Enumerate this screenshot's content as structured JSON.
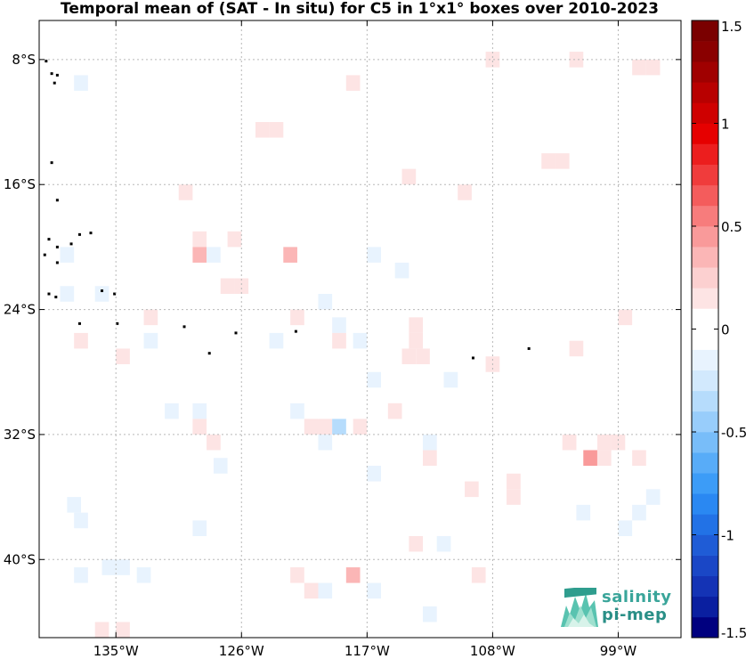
{
  "chart_data": {
    "type": "heatmap",
    "title": "Temporal mean of (SAT - In situ) for C5 in 1°x1° boxes over 2010-2023",
    "xlabel": "",
    "ylabel": "",
    "x_range": [
      -140.5,
      -94.5
    ],
    "y_range": [
      -45,
      -5.5
    ],
    "x_ticks": [
      {
        "value": -135,
        "label": "135°W"
      },
      {
        "value": -126,
        "label": "126°W"
      },
      {
        "value": -117,
        "label": "117°W"
      },
      {
        "value": -108,
        "label": "108°W"
      },
      {
        "value": -99,
        "label": "99°W"
      }
    ],
    "y_ticks": [
      {
        "value": -8,
        "label": "8°S"
      },
      {
        "value": -16,
        "label": "16°S"
      },
      {
        "value": -24,
        "label": "24°S"
      },
      {
        "value": -32,
        "label": "32°S"
      },
      {
        "value": -40,
        "label": "40°S"
      }
    ],
    "grid": true,
    "colorbar": {
      "min": -1.5,
      "max": 1.5,
      "ticks": [
        {
          "value": 1.5,
          "label": "1.5"
        },
        {
          "value": 1,
          "label": "1"
        },
        {
          "value": 0.5,
          "label": "0.5"
        },
        {
          "value": 0,
          "label": "0"
        },
        {
          "value": -0.5,
          "label": "-0.5"
        },
        {
          "value": -1,
          "label": "-1"
        },
        {
          "value": -1.5,
          "label": "-1.5"
        }
      ],
      "colors": [
        "#00007f",
        "#0a1fa0",
        "#1433b5",
        "#1a47c6",
        "#1f5cd6",
        "#2272e6",
        "#2a88f2",
        "#3c9cf7",
        "#58acf8",
        "#78bdf9",
        "#98cdfb",
        "#b6dcfc",
        "#d2e9fd",
        "#e8f3fe",
        "#ffffff",
        "#ffffff",
        "#fde4e4",
        "#fcd0d0",
        "#fbb6b6",
        "#f99a9a",
        "#f77c7c",
        "#f45c5c",
        "#f03c3c",
        "#ec1e1e",
        "#e60000",
        "#cf0000",
        "#b80000",
        "#a00000",
        "#8a0000",
        "#7a0000"
      ]
    },
    "cells": [
      {
        "lon": -138,
        "lat": -8,
        "value": 0
      },
      {
        "lon": -137.5,
        "lat": -9.5,
        "value": -0.1
      },
      {
        "lon": -138.5,
        "lat": -20.5,
        "value": -0.1
      },
      {
        "lon": -138.5,
        "lat": -23,
        "value": -0.1
      },
      {
        "lon": -137.5,
        "lat": -26,
        "value": 0.15
      },
      {
        "lon": -138,
        "lat": -36.5,
        "value": -0.1
      },
      {
        "lon": -137.5,
        "lat": -37.5,
        "value": -0.1
      },
      {
        "lon": -137.5,
        "lat": -41,
        "value": -0.1
      },
      {
        "lon": -136,
        "lat": -23,
        "value": -0.1
      },
      {
        "lon": -135.5,
        "lat": -40.5,
        "value": -0.1
      },
      {
        "lon": -134.5,
        "lat": -40.5,
        "value": -0.1
      },
      {
        "lon": -136,
        "lat": -44.5,
        "value": 0.15
      },
      {
        "lon": -134.5,
        "lat": -44.5,
        "value": 0.15
      },
      {
        "lon": -134.5,
        "lat": -27,
        "value": 0.15
      },
      {
        "lon": -133,
        "lat": -41,
        "value": -0.1
      },
      {
        "lon": -132.5,
        "lat": -24.5,
        "value": 0.15
      },
      {
        "lon": -132.5,
        "lat": -26,
        "value": -0.1
      },
      {
        "lon": -131,
        "lat": -30.5,
        "value": -0.1
      },
      {
        "lon": -130,
        "lat": -16.5,
        "value": 0.15
      },
      {
        "lon": -129,
        "lat": -19.5,
        "value": 0.15
      },
      {
        "lon": -129,
        "lat": -20.5,
        "value": 0.3
      },
      {
        "lon": -128,
        "lat": -20.5,
        "value": -0.2
      },
      {
        "lon": -129,
        "lat": -30.5,
        "value": -0.1
      },
      {
        "lon": -129,
        "lat": -31.5,
        "value": 0.15
      },
      {
        "lon": -128,
        "lat": -32.5,
        "value": 0.15
      },
      {
        "lon": -127.5,
        "lat": -34,
        "value": -0.1
      },
      {
        "lon": -129,
        "lat": -38,
        "value": -0.1
      },
      {
        "lon": -126.5,
        "lat": -19.5,
        "value": 0.15
      },
      {
        "lon": -127,
        "lat": -22.5,
        "value": 0.15
      },
      {
        "lon": -126,
        "lat": -22.5,
        "value": 0.15
      },
      {
        "lon": -124.5,
        "lat": -12.5,
        "value": 0.15
      },
      {
        "lon": -123.5,
        "lat": -12.5,
        "value": 0.15
      },
      {
        "lon": -122.5,
        "lat": -20.5,
        "value": 0.35
      },
      {
        "lon": -123.5,
        "lat": -26,
        "value": -0.1
      },
      {
        "lon": -122,
        "lat": -24.5,
        "value": 0.15
      },
      {
        "lon": -122,
        "lat": -30.5,
        "value": -0.1
      },
      {
        "lon": -121,
        "lat": -31.5,
        "value": 0.15
      },
      {
        "lon": -122,
        "lat": -41,
        "value": 0.15
      },
      {
        "lon": -121,
        "lat": -42,
        "value": 0.15
      },
      {
        "lon": -120,
        "lat": -23.5,
        "value": -0.1
      },
      {
        "lon": -120,
        "lat": -31.5,
        "value": 0.15
      },
      {
        "lon": -120,
        "lat": -32.5,
        "value": -0.1
      },
      {
        "lon": -120,
        "lat": -42,
        "value": -0.1
      },
      {
        "lon": -119,
        "lat": -25,
        "value": -0.1
      },
      {
        "lon": -119,
        "lat": -26,
        "value": 0.15
      },
      {
        "lon": -119,
        "lat": -31.5,
        "value": -0.4
      },
      {
        "lon": -118,
        "lat": -9.5,
        "value": 0.15
      },
      {
        "lon": -118,
        "lat": -41,
        "value": 0.35
      },
      {
        "lon": -117.5,
        "lat": -26,
        "value": -0.1
      },
      {
        "lon": -117.5,
        "lat": -31.5,
        "value": 0.15
      },
      {
        "lon": -116.5,
        "lat": -20.5,
        "value": -0.1
      },
      {
        "lon": -116.5,
        "lat": -28.5,
        "value": -0.1
      },
      {
        "lon": -116.5,
        "lat": -34.5,
        "value": -0.1
      },
      {
        "lon": -116.5,
        "lat": -42,
        "value": -0.1
      },
      {
        "lon": -115,
        "lat": -30.5,
        "value": 0.15
      },
      {
        "lon": -114,
        "lat": -15.5,
        "value": 0.15
      },
      {
        "lon": -114.5,
        "lat": -21.5,
        "value": -0.1
      },
      {
        "lon": -114,
        "lat": -27,
        "value": 0.15
      },
      {
        "lon": -113,
        "lat": -27,
        "value": 0.15
      },
      {
        "lon": -113.5,
        "lat": -25,
        "value": 0.15
      },
      {
        "lon": -113.5,
        "lat": -26,
        "value": 0.15
      },
      {
        "lon": -113.5,
        "lat": -39,
        "value": 0.15
      },
      {
        "lon": -112.5,
        "lat": -33.5,
        "value": 0.15
      },
      {
        "lon": -112.5,
        "lat": -43.5,
        "value": -0.1
      },
      {
        "lon": -112.5,
        "lat": -32.5,
        "value": -0.1
      },
      {
        "lon": -111.5,
        "lat": -39,
        "value": -0.1
      },
      {
        "lon": -111,
        "lat": -28.5,
        "value": -0.1
      },
      {
        "lon": -110,
        "lat": -16.5,
        "value": 0.15
      },
      {
        "lon": -109.5,
        "lat": -35.5,
        "value": 0.15
      },
      {
        "lon": -109,
        "lat": -41,
        "value": 0.15
      },
      {
        "lon": -108,
        "lat": -8,
        "value": 0.15
      },
      {
        "lon": -108,
        "lat": -27.5,
        "value": 0.15
      },
      {
        "lon": -106.5,
        "lat": -35,
        "value": 0.15
      },
      {
        "lon": -106.5,
        "lat": -36,
        "value": 0.15
      },
      {
        "lon": -104,
        "lat": -14.5,
        "value": 0.15
      },
      {
        "lon": -103,
        "lat": -14.5,
        "value": 0.15
      },
      {
        "lon": -102,
        "lat": -8,
        "value": 0.15
      },
      {
        "lon": -102,
        "lat": -26.5,
        "value": 0.15
      },
      {
        "lon": -102.5,
        "lat": -32.5,
        "value": 0.15
      },
      {
        "lon": -101.5,
        "lat": -37,
        "value": -0.1
      },
      {
        "lon": -101,
        "lat": -33.5,
        "value": 0.4
      },
      {
        "lon": -100,
        "lat": -32.5,
        "value": 0.15
      },
      {
        "lon": -99,
        "lat": -32.5,
        "value": 0.15
      },
      {
        "lon": -100,
        "lat": -33.5,
        "value": 0.15
      },
      {
        "lon": -98.5,
        "lat": -24.5,
        "value": 0.15
      },
      {
        "lon": -98.5,
        "lat": -38,
        "value": -0.1
      },
      {
        "lon": -97.5,
        "lat": -37,
        "value": -0.1
      },
      {
        "lon": -97.5,
        "lat": -33.5,
        "value": 0.15
      },
      {
        "lon": -96.5,
        "lat": -36,
        "value": -0.1
      },
      {
        "lon": -97.5,
        "lat": -8.5,
        "value": 0.15
      },
      {
        "lon": -96.5,
        "lat": -8.5,
        "value": 0.15
      }
    ],
    "islands": [
      {
        "lon": -140,
        "lat": -8.1
      },
      {
        "lon": -139.6,
        "lat": -8.9
      },
      {
        "lon": -139.4,
        "lat": -9.5
      },
      {
        "lon": -139.2,
        "lat": -9.0
      },
      {
        "lon": -139.6,
        "lat": -14.6
      },
      {
        "lon": -139.2,
        "lat": -17.0
      },
      {
        "lon": -139.8,
        "lat": -19.5
      },
      {
        "lon": -139.2,
        "lat": -20.0
      },
      {
        "lon": -140.1,
        "lat": -20.5
      },
      {
        "lon": -138.2,
        "lat": -19.8
      },
      {
        "lon": -137.6,
        "lat": -19.2
      },
      {
        "lon": -136.8,
        "lat": -19.1
      },
      {
        "lon": -139.2,
        "lat": -21.0
      },
      {
        "lon": -139.8,
        "lat": -23.0
      },
      {
        "lon": -139.3,
        "lat": -23.2
      },
      {
        "lon": -136.0,
        "lat": -22.8
      },
      {
        "lon": -135.1,
        "lat": -23.0
      },
      {
        "lon": -137.6,
        "lat": -24.9
      },
      {
        "lon": -134.9,
        "lat": -24.9
      },
      {
        "lon": -130.1,
        "lat": -25.1
      },
      {
        "lon": -128.3,
        "lat": -26.8
      },
      {
        "lon": -126.4,
        "lat": -25.5
      },
      {
        "lon": -122.1,
        "lat": -25.4
      },
      {
        "lon": -109.4,
        "lat": -27.1
      },
      {
        "lon": -105.4,
        "lat": -26.5
      }
    ]
  },
  "logo": {
    "line1": "salinity",
    "line2": "pi-mep"
  }
}
